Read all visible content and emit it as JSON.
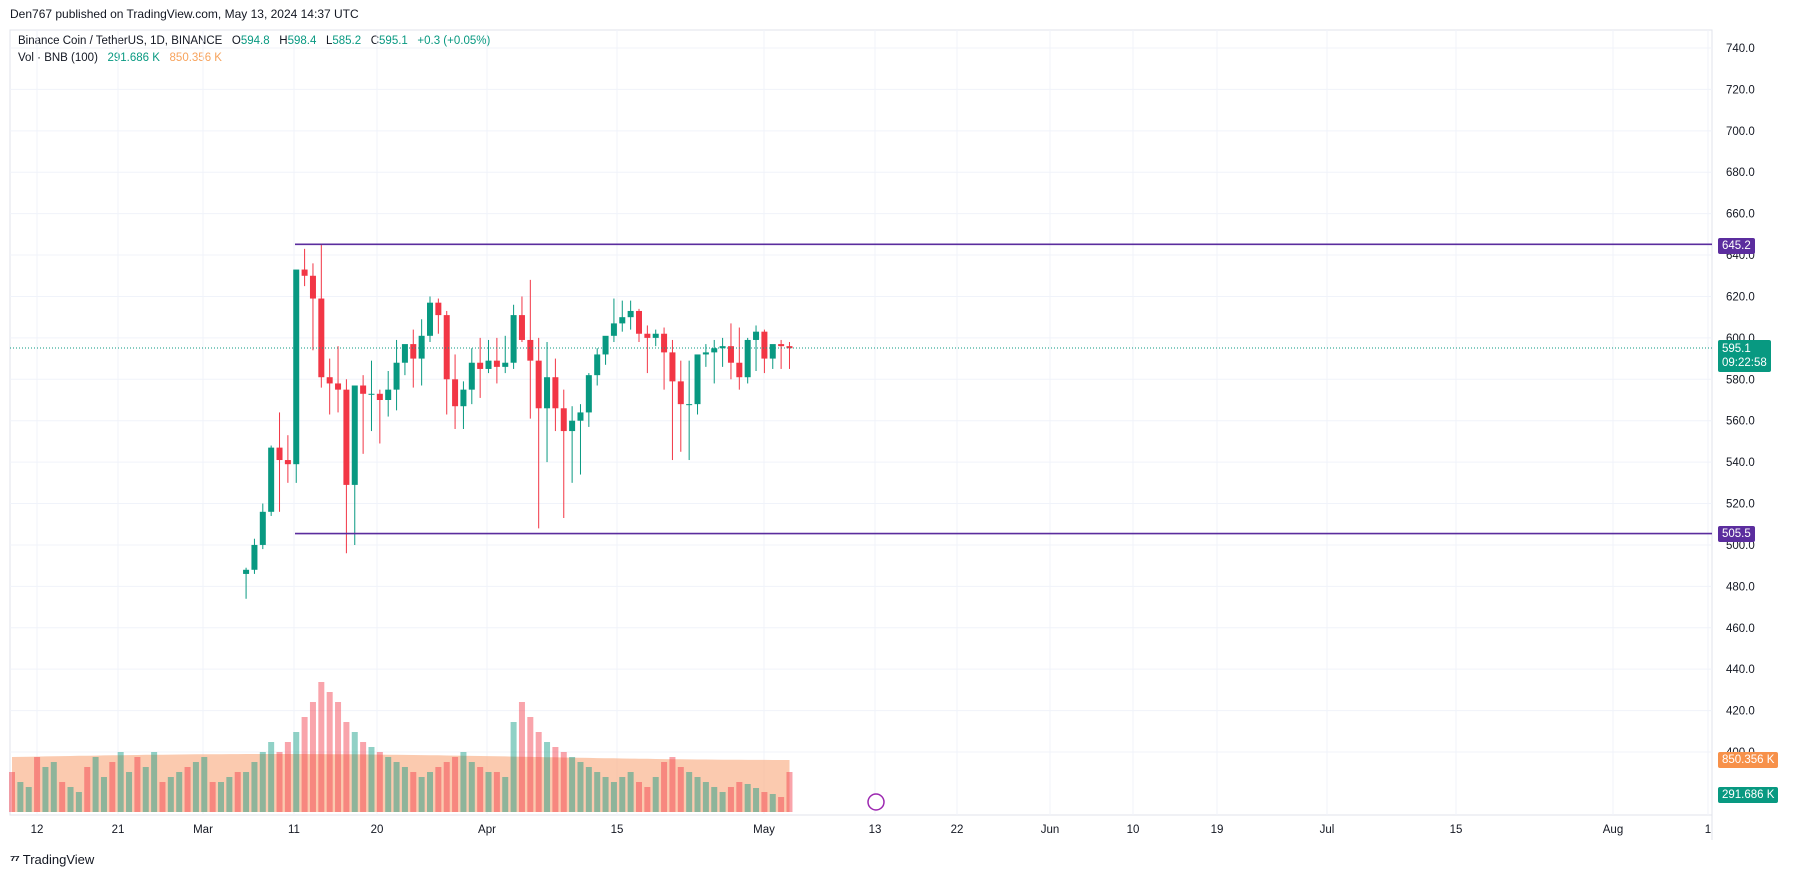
{
  "header": {
    "published": "Den767 published on TradingView.com, May 13, 2024 14:37 UTC"
  },
  "legend": {
    "symbol": "Binance Coin / TetherUS, 1D, BINANCE",
    "o_label": "O",
    "o_value": "594.8",
    "h_label": "H",
    "h_value": "598.4",
    "l_label": "L",
    "l_value": "585.2",
    "c_label": "C",
    "c_value": "595.1",
    "change": "+0.3 (+0.05%)",
    "vol_label": "Vol · BNB (100)",
    "vol_value": "291.686 K",
    "vol_ma_value": "850.356 K"
  },
  "tags": {
    "resistance": "645.2",
    "support": "505.5",
    "last_price": "595.1",
    "countdown": "09:22:58",
    "vol_ma": "850.356 K",
    "vol": "291.686 K"
  },
  "footer": {
    "brand": "TradingView"
  },
  "colors": {
    "up": "#089981",
    "down": "#f23645",
    "line": "#5b2d9e",
    "vol_ma_fill": "#f9b48d",
    "grid": "#f0f3fa"
  },
  "chart_data": {
    "type": "candlestick",
    "title": "Binance Coin / TetherUS, 1D, BINANCE",
    "y_ticks": [
      "740.0",
      "720.0",
      "700.0",
      "680.0",
      "660.0",
      "640.0",
      "620.0",
      "600.0",
      "580.0",
      "560.0",
      "540.0",
      "520.0",
      "500.0",
      "480.0",
      "460.0",
      "440.0",
      "420.0",
      "400.0"
    ],
    "ylim": [
      388,
      746
    ],
    "x_ticks": [
      "12",
      "21",
      "Mar",
      "11",
      "20",
      "Apr",
      "15",
      "May",
      "13",
      "22",
      "Jun",
      "10",
      "19",
      "Jul",
      "15",
      "Aug",
      "1"
    ],
    "horizontal_lines": [
      {
        "label": "645.2",
        "value": 645.2
      },
      {
        "label": "505.5",
        "value": 505.5
      }
    ],
    "last_price": 595.1,
    "candles": [
      [
        null,
        null,
        null,
        null
      ],
      [
        null,
        null,
        null,
        null
      ],
      [
        null,
        null,
        null,
        null
      ],
      [
        null,
        null,
        null,
        null
      ],
      [
        null,
        null,
        null,
        null
      ],
      [
        null,
        null,
        null,
        null
      ],
      [
        null,
        null,
        null,
        null
      ],
      [
        null,
        null,
        null,
        null
      ],
      [
        null,
        null,
        null,
        null
      ],
      [
        null,
        null,
        null,
        null
      ],
      [
        null,
        null,
        null,
        null
      ],
      [
        null,
        null,
        null,
        null
      ],
      [
        null,
        null,
        null,
        null
      ],
      [
        null,
        null,
        null,
        null
      ],
      [
        null,
        null,
        null,
        null
      ],
      [
        null,
        null,
        null,
        null
      ],
      [
        null,
        null,
        null,
        null
      ],
      [
        null,
        null,
        null,
        null
      ],
      [
        null,
        null,
        null,
        null
      ],
      [
        null,
        null,
        null,
        null
      ],
      [
        null,
        null,
        null,
        null
      ],
      [
        null,
        null,
        null,
        null
      ],
      [
        null,
        null,
        null,
        null
      ],
      [
        null,
        null,
        null,
        null
      ],
      [
        null,
        null,
        null,
        null
      ],
      [
        null,
        null,
        null,
        null
      ],
      [
        null,
        null,
        null,
        null
      ],
      [
        null,
        null,
        null,
        null
      ],
      [
        486,
        489,
        474,
        488
      ],
      [
        488,
        503,
        486,
        500
      ],
      [
        500,
        520,
        498,
        516
      ],
      [
        516,
        548,
        514,
        547
      ],
      [
        547,
        564,
        516,
        541
      ],
      [
        541,
        553,
        530,
        539
      ],
      [
        539,
        631,
        530,
        633
      ],
      [
        633,
        643,
        625,
        630
      ],
      [
        630,
        636,
        594,
        619
      ],
      [
        619,
        645,
        576,
        581
      ],
      [
        581,
        590,
        563,
        578
      ],
      [
        578,
        596,
        564,
        575
      ],
      [
        575,
        580,
        496,
        529
      ],
      [
        529,
        567,
        500,
        577
      ],
      [
        577,
        582,
        544,
        573
      ],
      [
        573,
        589,
        555,
        573
      ],
      [
        573,
        575,
        549,
        570
      ],
      [
        570,
        584,
        562,
        575
      ],
      [
        575,
        599,
        565,
        588
      ],
      [
        588,
        595,
        582,
        597
      ],
      [
        597,
        604,
        576,
        590
      ],
      [
        590,
        609,
        577,
        601
      ],
      [
        601,
        620,
        598,
        617
      ],
      [
        617,
        619,
        602,
        611
      ],
      [
        611,
        613,
        563,
        580
      ],
      [
        580,
        592,
        556,
        567
      ],
      [
        567,
        579,
        556,
        575
      ],
      [
        575,
        595,
        568,
        588
      ],
      [
        588,
        600,
        571,
        585
      ],
      [
        585,
        599,
        583,
        589
      ],
      [
        589,
        600,
        578,
        586
      ],
      [
        586,
        601,
        583,
        588
      ],
      [
        588,
        616,
        585,
        611
      ],
      [
        611,
        620,
        598,
        599
      ],
      [
        599,
        628,
        561,
        589
      ],
      [
        589,
        600,
        508,
        566
      ],
      [
        566,
        598,
        540,
        581
      ],
      [
        581,
        590,
        555,
        566
      ],
      [
        566,
        575,
        513,
        555
      ],
      [
        555,
        567,
        530,
        560
      ],
      [
        560,
        568,
        534,
        564
      ],
      [
        564,
        583,
        557,
        582
      ],
      [
        582,
        595,
        577,
        592
      ],
      [
        592,
        600,
        587,
        601
      ],
      [
        601,
        619,
        598,
        607
      ],
      [
        607,
        618,
        603,
        610
      ],
      [
        610,
        618,
        604,
        613
      ],
      [
        613,
        614,
        598,
        602
      ],
      [
        602,
        606,
        583,
        600
      ],
      [
        600,
        604,
        596,
        602
      ],
      [
        602,
        605,
        575,
        593
      ],
      [
        593,
        599,
        541,
        579
      ],
      [
        579,
        589,
        545,
        568
      ],
      [
        568,
        589,
        541,
        568
      ],
      [
        568,
        590,
        563,
        592
      ],
      [
        592,
        597,
        586,
        593
      ],
      [
        593,
        599,
        578,
        595
      ],
      [
        595,
        600,
        586,
        596
      ],
      [
        596,
        607,
        580,
        588
      ],
      [
        588,
        605,
        575,
        581
      ],
      [
        581,
        600,
        578,
        599
      ],
      [
        599,
        606,
        584,
        603
      ],
      [
        603,
        604,
        583,
        590
      ],
      [
        590,
        595,
        585,
        597
      ],
      [
        597,
        599,
        585,
        596
      ],
      [
        596,
        598,
        585,
        595
      ]
    ],
    "volume_label": "Vol · BNB (100)",
    "volume_ma_value": "850.356 K",
    "volume_value": "291.686 K"
  }
}
